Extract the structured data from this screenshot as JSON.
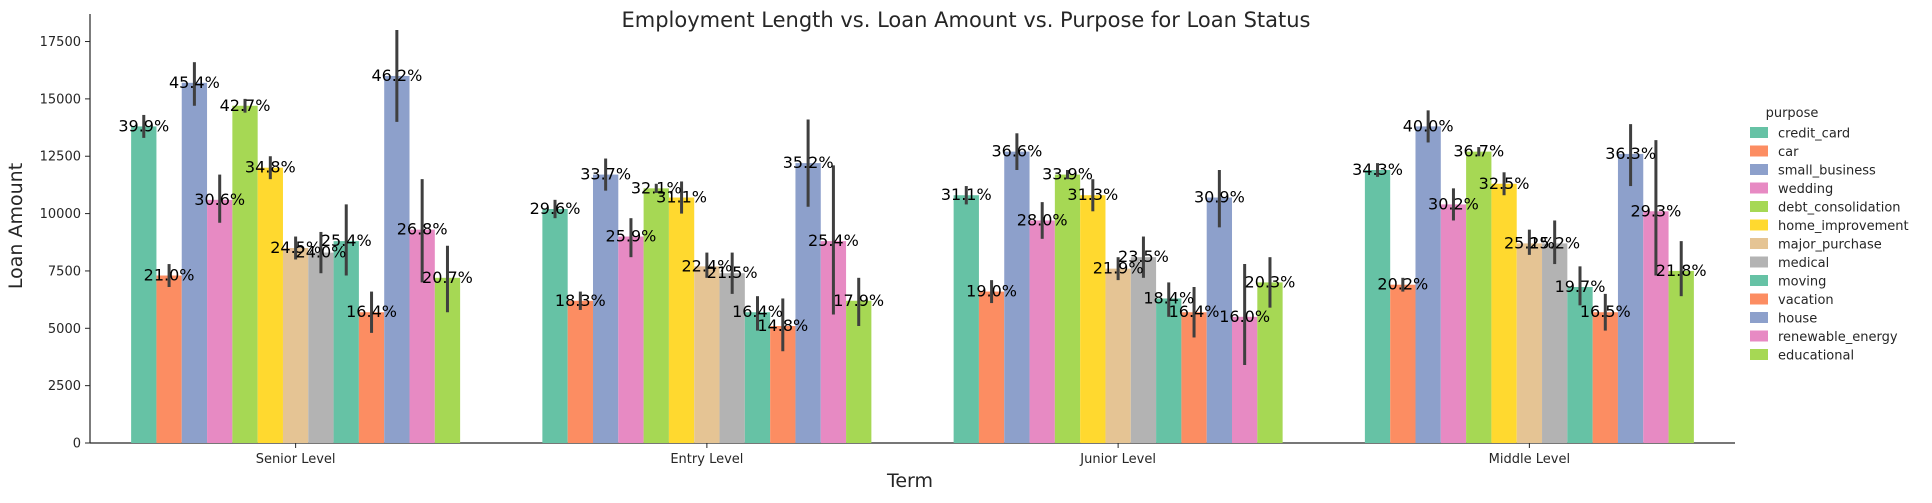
{
  "chart_data": {
    "type": "bar",
    "title": "Employment Length vs. Loan Amount vs. Purpose for Loan Status",
    "xlabel": "Term",
    "ylabel": "Loan Amount",
    "ylim": [
      0,
      18700
    ],
    "yticks": [
      0,
      2500,
      5000,
      7500,
      10000,
      12500,
      15000,
      17500
    ],
    "ytick_labels": [
      "0",
      "2500",
      "5000",
      "7500",
      "10000",
      "12500",
      "15000",
      "17500"
    ],
    "categories": [
      "Senior Level",
      "Entry Level",
      "Junior Level",
      "Middle Level"
    ],
    "legend": {
      "title": "purpose",
      "position": "right"
    },
    "grid": false,
    "series": [
      {
        "name": "credit_card",
        "color": "#66c2a5",
        "values": [
          13800,
          10200,
          10800,
          11900
        ],
        "ci": [
          [
            13300,
            14300
          ],
          [
            9800,
            10600
          ],
          [
            10400,
            11200
          ],
          [
            11600,
            12200
          ]
        ],
        "labels": [
          "39.9%",
          "29.6%",
          "31.1%",
          "34.3%"
        ]
      },
      {
        "name": "car",
        "color": "#fc8d62",
        "values": [
          7300,
          6200,
          6600,
          6900
        ],
        "ci": [
          [
            6800,
            7800
          ],
          [
            5800,
            6600
          ],
          [
            6100,
            7100
          ],
          [
            6600,
            7200
          ]
        ],
        "labels": [
          "21.0%",
          "18.3%",
          "19.0%",
          "20.2%"
        ]
      },
      {
        "name": "small_business",
        "color": "#8da0cb",
        "values": [
          15700,
          11700,
          12700,
          13800
        ],
        "ci": [
          [
            14700,
            16600
          ],
          [
            11000,
            12400
          ],
          [
            11900,
            13500
          ],
          [
            13100,
            14500
          ]
        ],
        "labels": [
          "45.4%",
          "33.7%",
          "36.6%",
          "40.0%"
        ]
      },
      {
        "name": "wedding",
        "color": "#e78ac3",
        "values": [
          10600,
          9000,
          9700,
          10400
        ],
        "ci": [
          [
            9600,
            11700
          ],
          [
            8100,
            9800
          ],
          [
            8900,
            10500
          ],
          [
            9700,
            11100
          ]
        ],
        "labels": [
          "30.6%",
          "25.9%",
          "28.0%",
          "30.2%"
        ]
      },
      {
        "name": "debt_consolidation",
        "color": "#a6d854",
        "values": [
          14700,
          11100,
          11700,
          12700
        ],
        "ci": [
          [
            14400,
            15000
          ],
          [
            10900,
            11300
          ],
          [
            11500,
            11900
          ],
          [
            12500,
            12900
          ]
        ],
        "labels": [
          "42.7%",
          "32.1%",
          "33.9%",
          "36.7%"
        ]
      },
      {
        "name": "home_improvement",
        "color": "#ffd92f",
        "values": [
          12000,
          10700,
          10800,
          11300
        ],
        "ci": [
          [
            11500,
            12500
          ],
          [
            10000,
            11400
          ],
          [
            10100,
            11500
          ],
          [
            10800,
            11800
          ]
        ],
        "labels": [
          "34.8%",
          "31.1%",
          "31.3%",
          "32.5%"
        ]
      },
      {
        "name": "major_purchase",
        "color": "#e5c494",
        "values": [
          8500,
          7700,
          7600,
          8700
        ],
        "ci": [
          [
            8000,
            9000
          ],
          [
            7200,
            8300
          ],
          [
            7100,
            8100
          ],
          [
            8200,
            9300
          ]
        ],
        "labels": [
          "24.5%",
          "22.4%",
          "21.9%",
          "25.1%"
        ]
      },
      {
        "name": "medical",
        "color": "#b3b3b3",
        "values": [
          8300,
          7400,
          8100,
          8700
        ],
        "ci": [
          [
            7400,
            9200
          ],
          [
            6500,
            8300
          ],
          [
            7200,
            9000
          ],
          [
            7800,
            9700
          ]
        ],
        "labels": [
          "24.0%",
          "21.5%",
          "23.5%",
          "25.2%"
        ]
      },
      {
        "name": "moving",
        "color": "#66c2a5",
        "values": [
          8800,
          5700,
          6300,
          6800
        ],
        "ci": [
          [
            7300,
            10400
          ],
          [
            4900,
            6400
          ],
          [
            5500,
            7000
          ],
          [
            6000,
            7700
          ]
        ],
        "labels": [
          "25.4%",
          "16.4%",
          "18.4%",
          "19.7%"
        ]
      },
      {
        "name": "vacation",
        "color": "#fc8d62",
        "values": [
          5700,
          5100,
          5700,
          5700
        ],
        "ci": [
          [
            4800,
            6600
          ],
          [
            4000,
            6300
          ],
          [
            4600,
            6800
          ],
          [
            4900,
            6500
          ]
        ],
        "labels": [
          "16.4%",
          "14.8%",
          "16.4%",
          "16.5%"
        ]
      },
      {
        "name": "house",
        "color": "#8da0cb",
        "values": [
          16000,
          12200,
          10700,
          12600
        ],
        "ci": [
          [
            14000,
            18000
          ],
          [
            10300,
            14100
          ],
          [
            9400,
            11900
          ],
          [
            11200,
            13900
          ]
        ],
        "labels": [
          "46.2%",
          "35.2%",
          "30.9%",
          "36.3%"
        ]
      },
      {
        "name": "renewable_energy",
        "color": "#e78ac3",
        "values": [
          9300,
          8800,
          5500,
          10100
        ],
        "ci": [
          [
            7000,
            11500
          ],
          [
            5600,
            12100
          ],
          [
            3400,
            7800
          ],
          [
            7300,
            13200
          ]
        ],
        "labels": [
          "26.8%",
          "25.4%",
          "16.0%",
          "29.3%"
        ]
      },
      {
        "name": "educational",
        "color": "#a6d854",
        "values": [
          7200,
          6200,
          7000,
          7500
        ],
        "ci": [
          [
            5700,
            8600
          ],
          [
            5100,
            7200
          ],
          [
            5900,
            8100
          ],
          [
            6400,
            8800
          ]
        ],
        "labels": [
          "20.7%",
          "17.9%",
          "20.3%",
          "21.8%"
        ]
      }
    ]
  }
}
